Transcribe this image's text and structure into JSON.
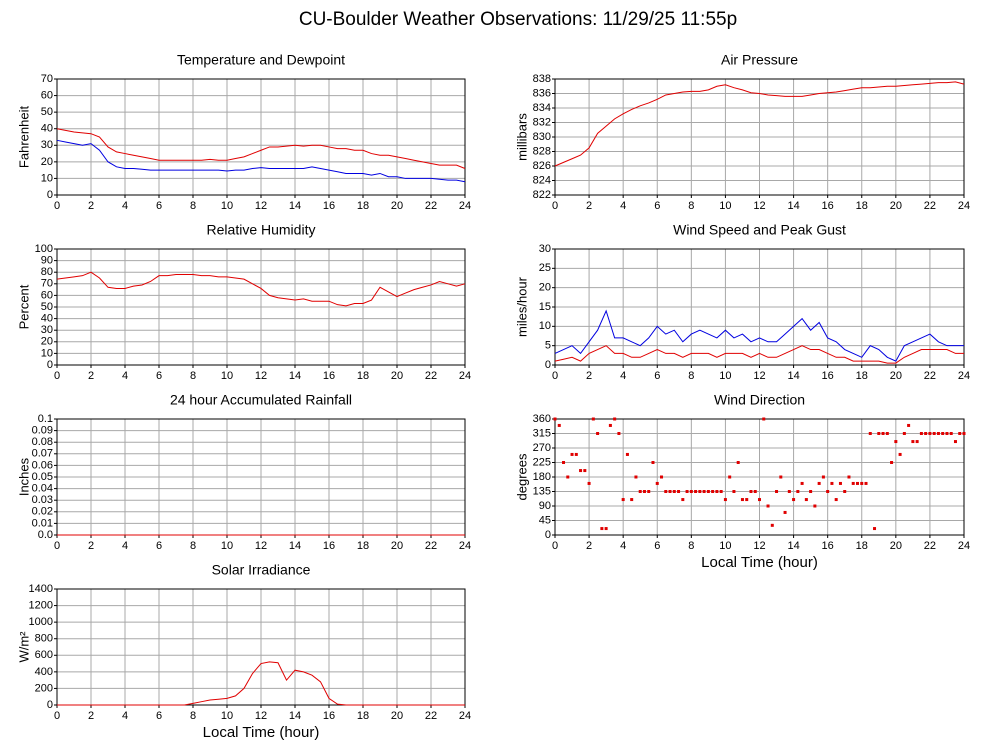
{
  "title": "CU-Boulder Weather Observations: 11/29/25 11:55p",
  "chart_data": [
    {
      "type": "line",
      "title": "Temperature and Dewpoint",
      "ylabel": "Fahrenheit",
      "grid": true,
      "x": [
        0,
        0.5,
        1,
        1.5,
        2,
        2.5,
        3,
        3.5,
        4,
        4.5,
        5,
        5.5,
        6,
        6.5,
        7,
        7.5,
        8,
        8.5,
        9,
        9.5,
        10,
        10.5,
        11,
        11.5,
        12,
        12.5,
        13,
        13.5,
        14,
        14.5,
        15,
        15.5,
        16,
        16.5,
        17,
        17.5,
        18,
        18.5,
        19,
        19.5,
        20,
        20.5,
        21,
        21.5,
        22,
        22.5,
        23,
        23.5,
        24
      ],
      "series": [
        {
          "color": "#e00000",
          "values": [
            40,
            39,
            38,
            37.5,
            37,
            35,
            29,
            26,
            25,
            24,
            23,
            22,
            21,
            21,
            21,
            21,
            21,
            21,
            21.5,
            21,
            21,
            22,
            23,
            25,
            27,
            29,
            29,
            29.5,
            30,
            29.5,
            30,
            30,
            29,
            28,
            28,
            27,
            27,
            25,
            24,
            24,
            23,
            22,
            21,
            20,
            19,
            18,
            18,
            18,
            16
          ]
        },
        {
          "color": "#0000e0",
          "values": [
            33,
            32,
            31,
            30,
            31,
            27,
            20,
            17,
            16,
            16,
            15.5,
            15,
            15,
            15,
            15,
            15,
            15,
            15,
            15,
            15,
            14.5,
            15,
            15,
            16,
            16.5,
            16,
            16,
            16,
            16,
            16,
            17,
            16,
            15,
            14,
            13,
            13,
            13,
            12,
            13,
            11,
            11,
            10,
            10,
            10,
            10,
            9.5,
            9,
            9,
            8
          ]
        }
      ],
      "xlim": [
        0,
        24
      ],
      "xticks": [
        0,
        2,
        4,
        6,
        8,
        10,
        12,
        14,
        16,
        18,
        20,
        22,
        24
      ],
      "ylim": [
        0,
        70
      ],
      "yticks": [
        0,
        10,
        20,
        30,
        40,
        50,
        60,
        70
      ]
    },
    {
      "type": "line",
      "title": "Air Pressure",
      "ylabel": "millibars",
      "grid": true,
      "x": [
        0,
        0.5,
        1,
        1.5,
        2,
        2.5,
        3,
        3.5,
        4,
        4.5,
        5,
        5.5,
        6,
        6.5,
        7,
        7.5,
        8,
        8.5,
        9,
        9.5,
        10,
        10.5,
        11,
        11.5,
        12,
        12.5,
        13,
        13.5,
        14,
        14.5,
        15,
        15.5,
        16,
        16.5,
        17,
        17.5,
        18,
        18.5,
        19,
        19.5,
        20,
        20.5,
        21,
        21.5,
        22,
        22.5,
        23,
        23.5,
        24
      ],
      "series": [
        {
          "color": "#e00000",
          "values": [
            826,
            826.5,
            827,
            827.5,
            828.5,
            830.5,
            831.5,
            832.5,
            833.2,
            833.8,
            834.3,
            834.7,
            835.2,
            835.8,
            836,
            836.2,
            836.3,
            836.3,
            836.5,
            837,
            837.2,
            836.8,
            836.5,
            836.1,
            836,
            835.8,
            835.7,
            835.6,
            835.6,
            835.6,
            835.8,
            836,
            836.1,
            836.2,
            836.4,
            836.6,
            836.8,
            836.8,
            836.9,
            837,
            837,
            837.1,
            837.2,
            837.3,
            837.4,
            837.5,
            837.5,
            837.6,
            837.3
          ]
        }
      ],
      "xlim": [
        0,
        24
      ],
      "xticks": [
        0,
        2,
        4,
        6,
        8,
        10,
        12,
        14,
        16,
        18,
        20,
        22,
        24
      ],
      "ylim": [
        822,
        838
      ],
      "yticks": [
        822,
        824,
        826,
        828,
        830,
        832,
        834,
        836,
        838
      ]
    },
    {
      "type": "line",
      "title": "Relative Humidity",
      "ylabel": "Percent",
      "grid": true,
      "x": [
        0,
        0.5,
        1,
        1.5,
        2,
        2.5,
        3,
        3.5,
        4,
        4.5,
        5,
        5.5,
        6,
        6.5,
        7,
        7.5,
        8,
        8.5,
        9,
        9.5,
        10,
        10.5,
        11,
        11.5,
        12,
        12.5,
        13,
        13.5,
        14,
        14.5,
        15,
        15.5,
        16,
        16.5,
        17,
        17.5,
        18,
        18.5,
        19,
        19.5,
        20,
        20.5,
        21,
        21.5,
        22,
        22.5,
        23,
        23.5,
        24
      ],
      "series": [
        {
          "color": "#e00000",
          "values": [
            74,
            75,
            76,
            77,
            80,
            75,
            67,
            66,
            66,
            68,
            69,
            72,
            77,
            77,
            78,
            78,
            78,
            77,
            77,
            76,
            76,
            75,
            74,
            70,
            66,
            60,
            58,
            57,
            56,
            57,
            55,
            55,
            55,
            52,
            51,
            53,
            53,
            56,
            67,
            63,
            59,
            62,
            65,
            67,
            69,
            72,
            70,
            68,
            70
          ]
        }
      ],
      "xlim": [
        0,
        24
      ],
      "xticks": [
        0,
        2,
        4,
        6,
        8,
        10,
        12,
        14,
        16,
        18,
        20,
        22,
        24
      ],
      "ylim": [
        0,
        100
      ],
      "yticks": [
        0,
        10,
        20,
        30,
        40,
        50,
        60,
        70,
        80,
        90,
        100
      ]
    },
    {
      "type": "line",
      "title": "Wind Speed and Peak Gust",
      "ylabel": "miles/hour",
      "grid": true,
      "x": [
        0,
        0.5,
        1,
        1.5,
        2,
        2.5,
        3,
        3.5,
        4,
        4.5,
        5,
        5.5,
        6,
        6.5,
        7,
        7.5,
        8,
        8.5,
        9,
        9.5,
        10,
        10.5,
        11,
        11.5,
        12,
        12.5,
        13,
        13.5,
        14,
        14.5,
        15,
        15.5,
        16,
        16.5,
        17,
        17.5,
        18,
        18.5,
        19,
        19.5,
        20,
        20.5,
        21,
        21.5,
        22,
        22.5,
        23,
        23.5,
        24
      ],
      "series": [
        {
          "color": "#0000e0",
          "values": [
            3,
            4,
            5,
            3,
            6,
            9,
            14,
            7,
            7,
            6,
            5,
            7,
            10,
            8,
            9,
            6,
            8,
            9,
            8,
            7,
            9,
            7,
            8,
            6,
            7,
            6,
            6,
            8,
            10,
            12,
            9,
            11,
            7,
            6,
            4,
            3,
            2,
            5,
            4,
            2,
            1,
            5,
            6,
            7,
            8,
            6,
            5,
            5,
            5
          ]
        },
        {
          "color": "#e00000",
          "values": [
            1,
            1.5,
            2,
            1,
            3,
            4,
            5,
            3,
            3,
            2,
            2,
            3,
            4,
            3,
            3,
            2,
            3,
            3,
            3,
            2,
            3,
            3,
            3,
            2,
            3,
            2,
            2,
            3,
            4,
            5,
            4,
            4,
            3,
            2,
            2,
            1,
            1,
            1,
            1,
            0.5,
            0.5,
            2,
            3,
            4,
            4,
            4,
            4,
            3,
            3
          ]
        }
      ],
      "xlim": [
        0,
        24
      ],
      "xticks": [
        0,
        2,
        4,
        6,
        8,
        10,
        12,
        14,
        16,
        18,
        20,
        22,
        24
      ],
      "ylim": [
        0,
        30
      ],
      "yticks": [
        0,
        5,
        10,
        15,
        20,
        25,
        30
      ]
    },
    {
      "type": "line",
      "title": "24 hour Accumulated Rainfall",
      "ylabel": "Inches",
      "grid": true,
      "x": [
        0,
        24
      ],
      "series": [
        {
          "color": "#e00000",
          "values": [
            0,
            0
          ]
        }
      ],
      "xlim": [
        0,
        24
      ],
      "xticks": [
        0,
        2,
        4,
        6,
        8,
        10,
        12,
        14,
        16,
        18,
        20,
        22,
        24
      ],
      "ylim": [
        0,
        0.1
      ],
      "yticks": [
        {
          "value": 0,
          "label": "0.0"
        },
        0.01,
        0.02,
        0.03,
        0.04,
        0.05,
        0.06,
        0.07,
        0.08,
        0.09,
        0.1
      ]
    },
    {
      "type": "scatter",
      "title": "Wind Direction",
      "ylabel": "degrees",
      "xlabel": "Local Time (hour)",
      "grid": true,
      "x": [
        0,
        0.25,
        0.5,
        0.75,
        1,
        1.25,
        1.5,
        1.75,
        2,
        2.25,
        2.5,
        2.75,
        3,
        3.25,
        3.5,
        3.75,
        4,
        4.25,
        4.5,
        4.75,
        5,
        5.25,
        5.5,
        5.75,
        6,
        6.25,
        6.5,
        6.75,
        7,
        7.25,
        7.5,
        7.75,
        8,
        8.25,
        8.5,
        8.75,
        9,
        9.25,
        9.5,
        9.75,
        10,
        10.25,
        10.5,
        10.75,
        11,
        11.25,
        11.5,
        11.75,
        12,
        12.25,
        12.5,
        12.75,
        13,
        13.25,
        13.5,
        13.75,
        14,
        14.25,
        14.5,
        14.75,
        15,
        15.25,
        15.5,
        15.75,
        16,
        16.25,
        16.5,
        16.75,
        17,
        17.25,
        17.5,
        17.75,
        18,
        18.25,
        18.5,
        18.75,
        19,
        19.25,
        19.5,
        19.75,
        20,
        20.25,
        20.5,
        20.75,
        21,
        21.25,
        21.5,
        21.75,
        22,
        22.25,
        22.5,
        22.75,
        23,
        23.25,
        23.5,
        23.75,
        24
      ],
      "series": [
        {
          "color": "#e00000",
          "values": [
            360,
            340,
            225,
            180,
            250,
            250,
            200,
            200,
            160,
            360,
            315,
            20,
            20,
            340,
            360,
            315,
            110,
            250,
            110,
            180,
            135,
            135,
            135,
            225,
            160,
            180,
            135,
            135,
            135,
            135,
            110,
            135,
            135,
            135,
            135,
            135,
            135,
            135,
            135,
            135,
            110,
            180,
            135,
            225,
            110,
            110,
            135,
            135,
            110,
            360,
            90,
            30,
            135,
            180,
            70,
            135,
            110,
            135,
            160,
            110,
            135,
            90,
            160,
            180,
            135,
            160,
            110,
            160,
            135,
            180,
            160,
            160,
            160,
            160,
            315,
            20,
            315,
            315,
            315,
            225,
            290,
            250,
            315,
            340,
            290,
            290,
            315,
            315,
            315,
            315,
            315,
            315,
            315,
            315,
            290,
            315,
            315
          ]
        }
      ],
      "xlim": [
        0,
        24
      ],
      "xticks": [
        0,
        2,
        4,
        6,
        8,
        10,
        12,
        14,
        16,
        18,
        20,
        22,
        24
      ],
      "ylim": [
        0,
        360
      ],
      "yticks": [
        0,
        45,
        90,
        135,
        180,
        225,
        270,
        315,
        360
      ]
    },
    {
      "type": "line",
      "title": "Solar Irradiance",
      "ylabel": "W/m²",
      "xlabel": "Local Time (hour)",
      "grid": true,
      "x": [
        0,
        0.5,
        1,
        1.5,
        2,
        2.5,
        3,
        3.5,
        4,
        4.5,
        5,
        5.5,
        6,
        6.5,
        7,
        7.5,
        8,
        8.5,
        9,
        9.5,
        10,
        10.5,
        11,
        11.5,
        12,
        12.5,
        13,
        13.5,
        14,
        14.5,
        15,
        15.5,
        16,
        16.5,
        17,
        17.5,
        18,
        18.5,
        19,
        19.5,
        20,
        20.5,
        21,
        21.5,
        22,
        22.5,
        23,
        23.5,
        24
      ],
      "series": [
        {
          "color": "#e00000",
          "values": [
            0,
            0,
            0,
            0,
            0,
            0,
            0,
            0,
            0,
            0,
            0,
            0,
            0,
            0,
            0,
            0,
            20,
            40,
            60,
            70,
            80,
            110,
            200,
            380,
            500,
            520,
            510,
            300,
            420,
            400,
            360,
            280,
            80,
            10,
            0,
            0,
            0,
            0,
            0,
            0,
            0,
            0,
            0,
            0,
            0,
            0,
            0,
            0,
            0
          ]
        }
      ],
      "xlim": [
        0,
        24
      ],
      "xticks": [
        0,
        2,
        4,
        6,
        8,
        10,
        12,
        14,
        16,
        18,
        20,
        22,
        24
      ],
      "ylim": [
        0,
        1400
      ],
      "yticks": [
        0,
        200,
        400,
        600,
        800,
        1000,
        1200,
        1400
      ]
    }
  ]
}
